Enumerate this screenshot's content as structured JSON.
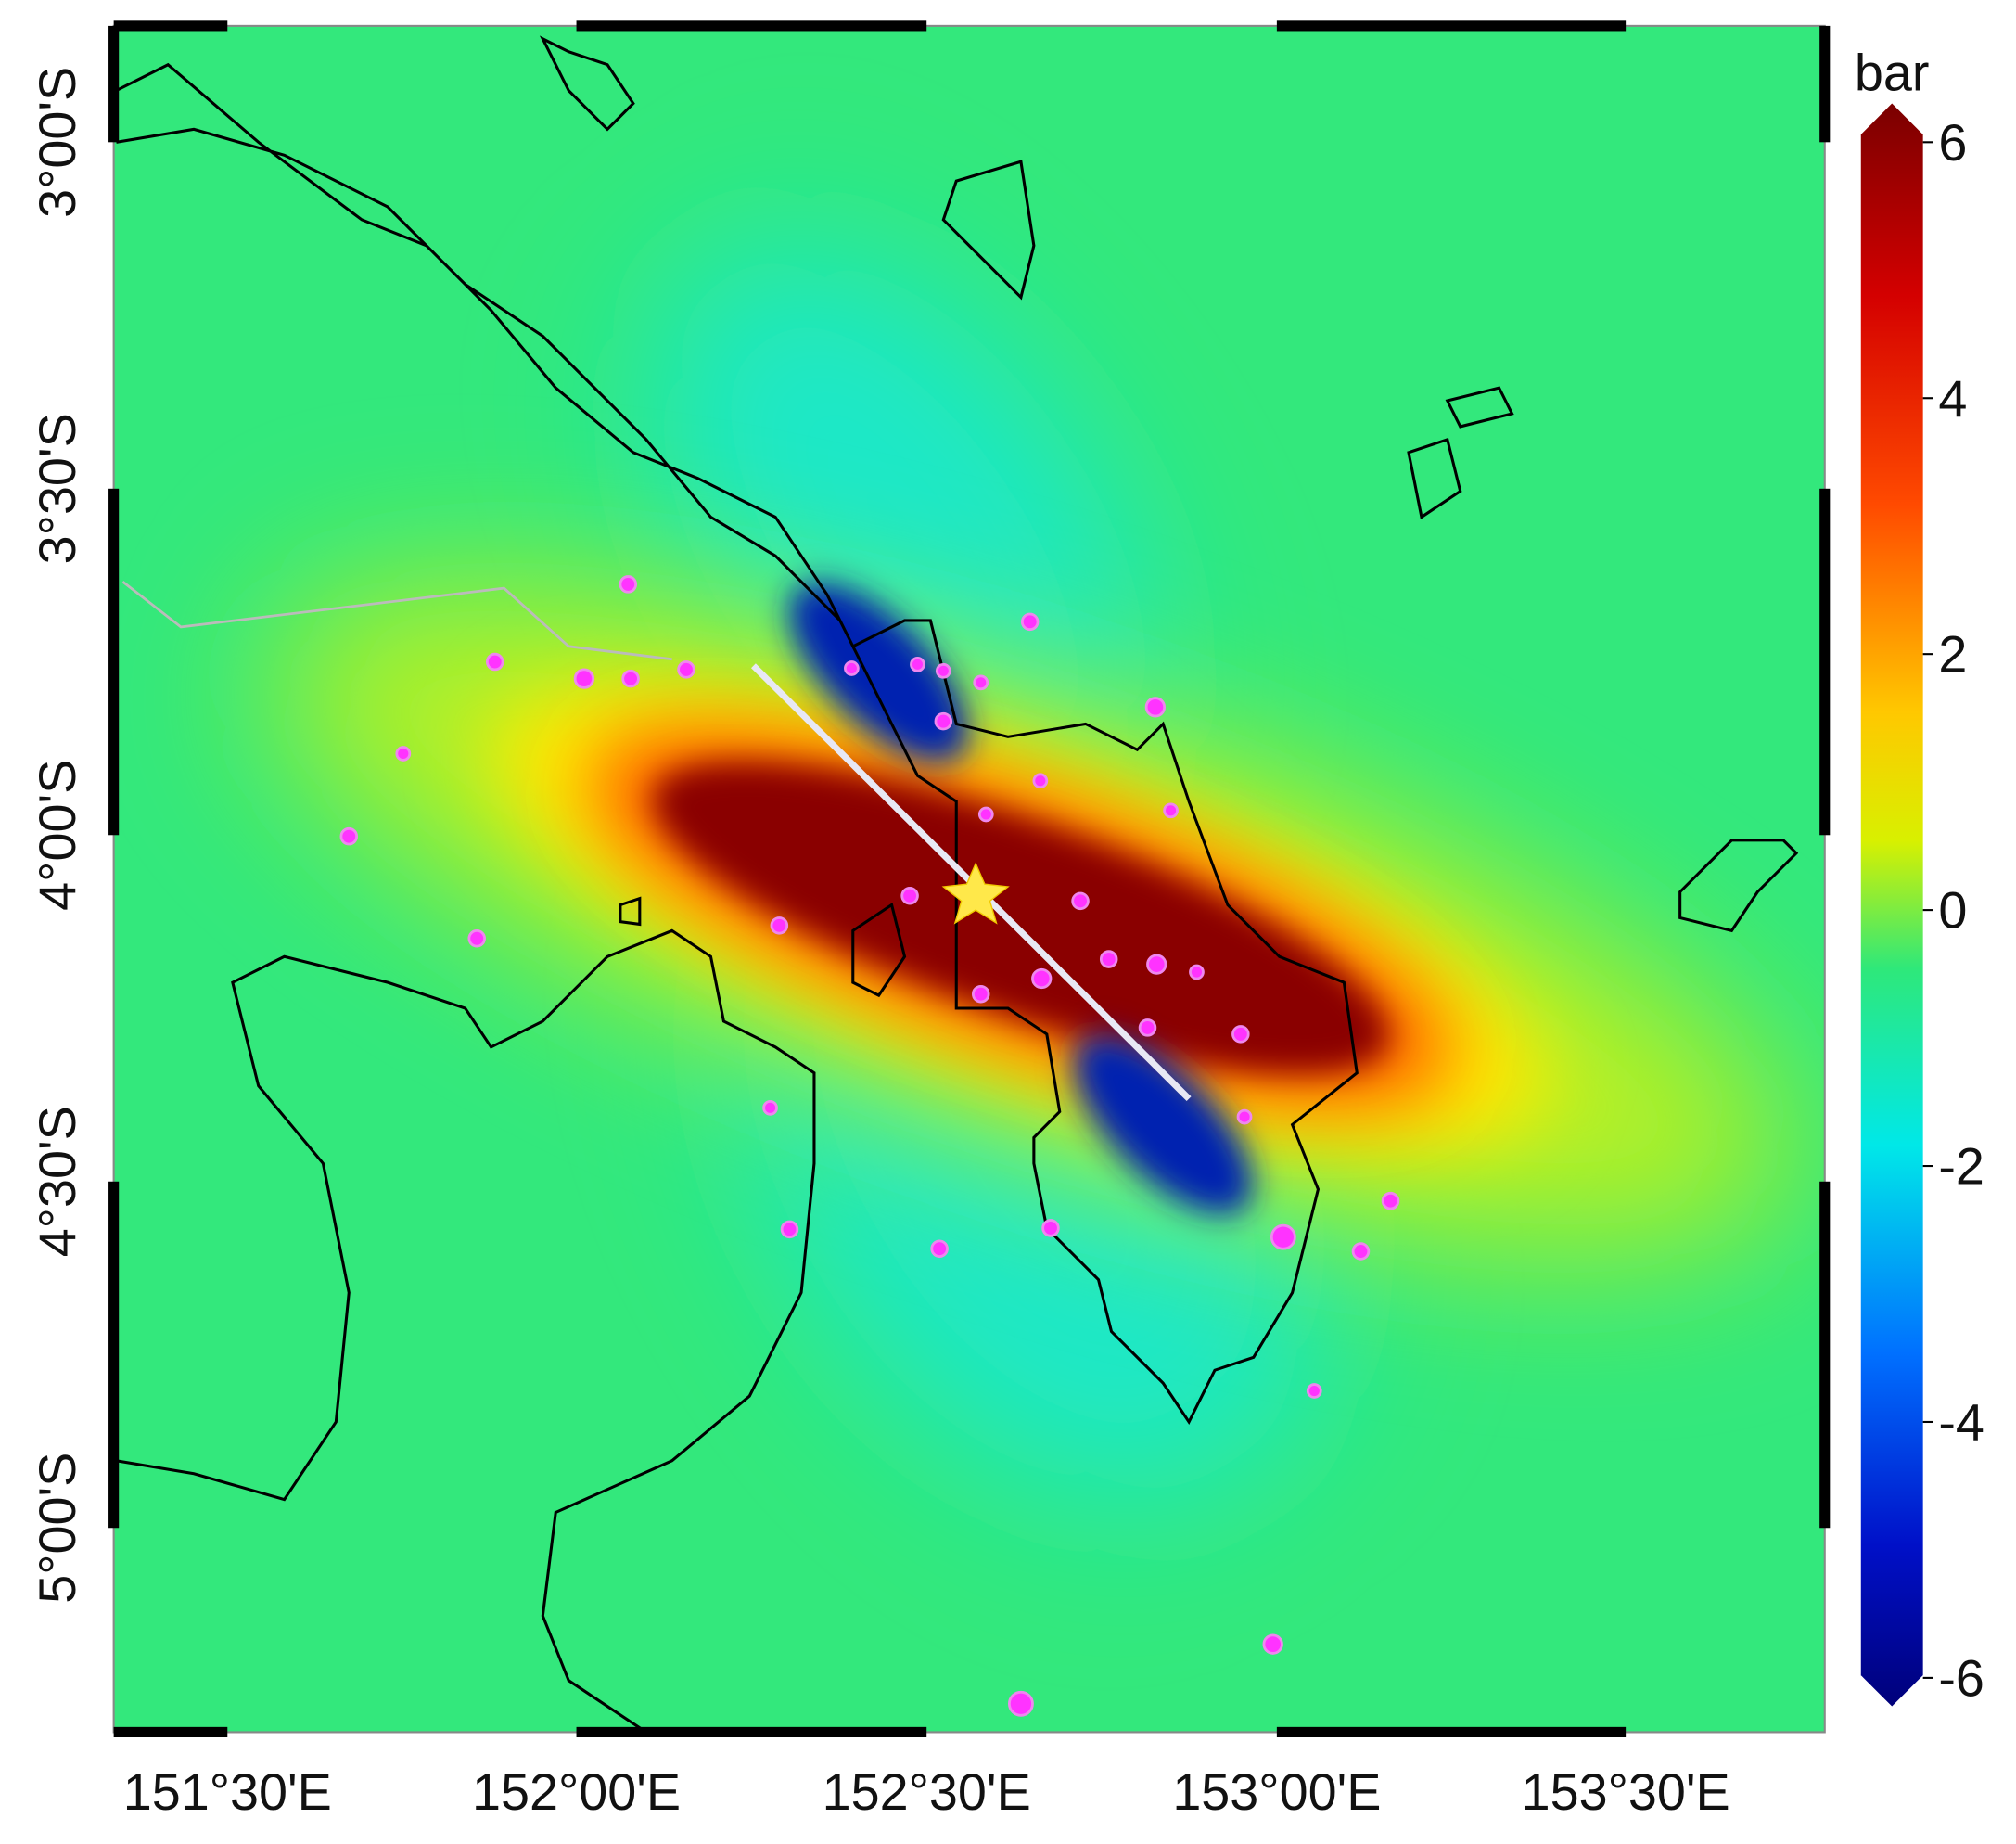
{
  "map": {
    "x_labels": [
      "151°30'E",
      "152°00'E",
      "152°30'E",
      "153°00'E",
      "153°30'E"
    ],
    "y_labels": [
      "3°00'S",
      "3°30'S",
      "4°00'S",
      "4°30'S",
      "5°00'S"
    ],
    "colorbar": {
      "label": "bar",
      "lim": [
        -6,
        6
      ],
      "ticks": [
        6,
        4,
        2,
        0,
        -2,
        -4,
        -6
      ]
    }
  }
}
